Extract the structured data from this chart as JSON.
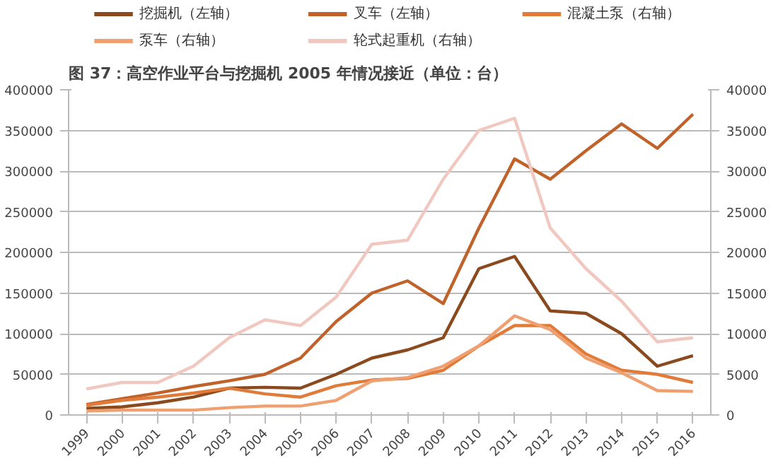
{
  "chart_data": {
    "type": "line",
    "title": "图 37：高空作业平台与挖掘机 2005 年情况接近（单位：台）",
    "categories": [
      "1999",
      "2000",
      "2001",
      "2002",
      "2003",
      "2004",
      "2005",
      "2006",
      "2007",
      "2008",
      "2009",
      "2010",
      "2011",
      "2012",
      "2013",
      "2014",
      "2015",
      "2016"
    ],
    "series": [
      {
        "name": "挖掘机（左轴）",
        "color": "#8a4a1e",
        "values": [
          8000,
          10000,
          15000,
          22000,
          33000,
          34000,
          33000,
          50000,
          70000,
          80000,
          95000,
          180000,
          195000,
          128000,
          125000,
          100000,
          60000,
          73000
        ]
      },
      {
        "name": "叉车（左轴）",
        "color": "#c0622a",
        "values": [
          13000,
          20000,
          27000,
          35000,
          42000,
          50000,
          70000,
          115000,
          150000,
          165000,
          137000,
          230000,
          315000,
          290000,
          325000,
          358000,
          328000,
          370000
        ]
      },
      {
        "name": "混凝土泵（右轴）",
        "color": "#e07b39",
        "axis": "y2",
        "values": [
          1200,
          1800,
          2200,
          2700,
          3300,
          2600,
          2200,
          3600,
          4300,
          4500,
          5500,
          8500,
          11000,
          11000,
          7500,
          5500,
          5000,
          4000
        ]
      },
      {
        "name": "泵车（右轴）",
        "color": "#f0a070",
        "axis": "y2",
        "values": [
          500,
          600,
          600,
          600,
          900,
          1100,
          1100,
          1800,
          4200,
          4600,
          6000,
          8500,
          12200,
          10500,
          7000,
          5200,
          3000,
          2900
        ]
      },
      {
        "name": "轮式起重机（右轴）",
        "color": "#f0c8c0",
        "axis": "y2",
        "values": [
          3200,
          4000,
          4000,
          6000,
          9500,
          11700,
          11000,
          14500,
          21000,
          21500,
          29000,
          35000,
          36500,
          23000,
          18000,
          14000,
          9000,
          9500
        ]
      }
    ],
    "ylim": [
      0,
      400000
    ],
    "yticks": [
      0,
      50000,
      100000,
      150000,
      200000,
      250000,
      300000,
      350000,
      400000
    ],
    "y2lim": [
      0,
      40000
    ],
    "y2ticks": [
      0,
      5000,
      10000,
      15000,
      20000,
      25000,
      30000,
      35000,
      40000
    ],
    "grid": "y",
    "legend": "top",
    "line_style": "solid",
    "marker": "none"
  }
}
